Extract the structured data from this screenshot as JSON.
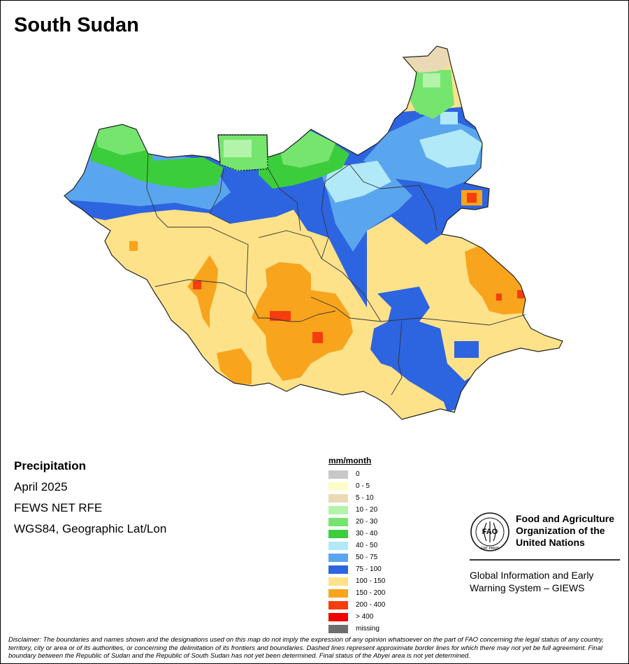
{
  "title": "South Sudan",
  "info": {
    "variable": "Precipitation",
    "period": "April 2025",
    "source": "FEWS NET RFE",
    "projection": "WGS84, Geographic Lat/Lon"
  },
  "legend": {
    "title": "mm/month",
    "items": [
      {
        "label": "0",
        "color": "#c8c8c8"
      },
      {
        "label": "0 - 5",
        "color": "#fefcc8"
      },
      {
        "label": "5 - 10",
        "color": "#ead9b4"
      },
      {
        "label": "10 - 20",
        "color": "#b4f3aa"
      },
      {
        "label": "20 - 30",
        "color": "#76e56e"
      },
      {
        "label": "30 - 40",
        "color": "#3ccd3c"
      },
      {
        "label": "40 - 50",
        "color": "#b2e9f9"
      },
      {
        "label": "50 - 75",
        "color": "#5aa6ee"
      },
      {
        "label": "75 - 100",
        "color": "#2d64e0"
      },
      {
        "label": "100 - 150",
        "color": "#fde28a"
      },
      {
        "label": "150 - 200",
        "color": "#f8a41c"
      },
      {
        "label": "200 - 400",
        "color": "#f53d0e"
      },
      {
        "label": "> 400",
        "color": "#f00000"
      },
      {
        "label": "missing",
        "color": "#6e6e6e"
      }
    ]
  },
  "organization": {
    "name": "Food and Agriculture Organization of the United Nations",
    "logo_text": "FAO",
    "logo_motto": "FIAT PANIS",
    "system": "Global Information and Early Warning System – GIEWS"
  },
  "disclaimer": "Disclaimer: The boundaries and names shown and the designations used on this map do not imply the expression of any opinion whatsoever on the part of FAO concerning the legal status of any country, territory, city or area or of its authorities, or concerning the delimitation of its frontiers and boundaries. Dashed lines represent approximate border lines for which there may not yet be full agreement. Final boundary between the Republic of Sudan and the Republic of South Sudan has not yet been determined. Final status of the Abyei area is not yet determined."
}
